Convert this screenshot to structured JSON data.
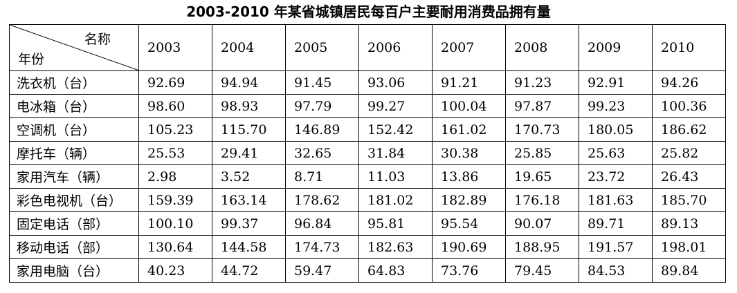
{
  "title": "2003-2010 年某省城镇居民每百户主要耐用消费品拥有量",
  "corner": {
    "top": "名称",
    "bottom": "年份"
  },
  "years": [
    "2003",
    "2004",
    "2005",
    "2006",
    "2007",
    "2008",
    "2009",
    "2010"
  ],
  "rows": [
    {
      "label": "洗衣机（台）",
      "values": [
        "92.69",
        "94.94",
        "91.45",
        "93.06",
        "91.21",
        "91.23",
        "92.91",
        "94.26"
      ]
    },
    {
      "label": "电冰箱（台）",
      "values": [
        "98.60",
        "98.93",
        "97.79",
        "99.27",
        "100.04",
        "97.87",
        "99.23",
        "100.36"
      ]
    },
    {
      "label": "空调机（台）",
      "values": [
        "105.23",
        "115.70",
        "146.89",
        "152.42",
        "161.02",
        "170.73",
        "180.05",
        "186.62"
      ]
    },
    {
      "label": "摩托车（辆）",
      "values": [
        "25.53",
        "29.41",
        "32.65",
        "31.84",
        "30.38",
        "25.85",
        "25.63",
        "25.82"
      ]
    },
    {
      "label": "家用汽车（辆）",
      "values": [
        "2.98",
        "3.52",
        "8.71",
        "11.03",
        "13.86",
        "19.65",
        "23.72",
        "26.43"
      ]
    },
    {
      "label": "彩色电视机（台）",
      "values": [
        "159.39",
        "163.14",
        "178.62",
        "181.02",
        "182.89",
        "176.18",
        "181.63",
        "185.70"
      ]
    },
    {
      "label": "固定电话（部）",
      "values": [
        "100.10",
        "99.37",
        "96.84",
        "95.81",
        "95.54",
        "90.07",
        "89.71",
        "89.13"
      ]
    },
    {
      "label": "移动电话（部）",
      "values": [
        "130.64",
        "144.58",
        "174.73",
        "182.63",
        "190.69",
        "188.95",
        "191.57",
        "198.01"
      ]
    },
    {
      "label": "家用电脑（台）",
      "values": [
        "40.23",
        "44.72",
        "59.47",
        "64.83",
        "73.76",
        "79.45",
        "84.53",
        "89.84"
      ]
    }
  ]
}
